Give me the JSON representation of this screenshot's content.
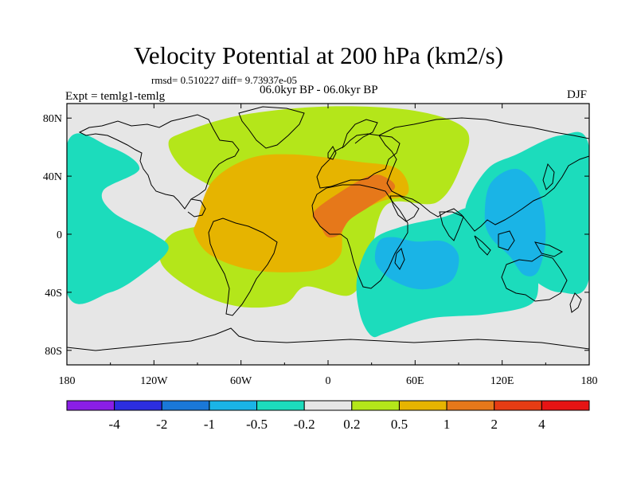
{
  "figure": {
    "title": "Velocity Potential at 200 hPa (km2/s)",
    "stats": "rmsd= 0.510227 diff= 9.73937e-05",
    "subtitle": "06.0kyr BP - 06.0kyr BP",
    "left_label": "Expt = temlg1-temlg",
    "right_label": "DJF"
  },
  "axes": {
    "lon_labels": [
      "180",
      "120W",
      "60W",
      "0",
      "60E",
      "120E",
      "180"
    ],
    "lon_values": [
      -180,
      -120,
      -60,
      0,
      60,
      120,
      180
    ],
    "lat_labels": [
      "80N",
      "40N",
      "0",
      "40S",
      "80S"
    ],
    "lat_values": [
      80,
      40,
      0,
      -40,
      -80
    ]
  },
  "colorbar": {
    "labels": [
      "-4",
      "-2",
      "-1",
      "-0.5",
      "-0.2",
      "0.2",
      "0.5",
      "1",
      "2",
      "4"
    ],
    "colors": [
      "#8a1ee6",
      "#2c2ee0",
      "#1a78d8",
      "#1ab4e6",
      "#1cdcbc",
      "#e6e6e6",
      "#b4e61a",
      "#e6b400",
      "#e6781a",
      "#e63c14",
      "#e61414"
    ]
  },
  "chart_data": {
    "type": "filled-contour-map",
    "variable": "Velocity Potential at 200 hPa",
    "units": "km2/s",
    "season": "DJF",
    "levels": [
      -4,
      -2,
      -1,
      -0.5,
      -0.2,
      0.2,
      0.5,
      1,
      2,
      4
    ],
    "xlim": [
      -180,
      180
    ],
    "ylim": [
      -90,
      90
    ],
    "features": [
      {
        "name": "positive anomaly (0.2 to 0.5) over Atlantic, Europe, Africa",
        "level": "0.2-0.5",
        "color": "#b4e61a",
        "outline": [
          [
            -100,
            70
          ],
          [
            -60,
            82
          ],
          [
            0,
            88
          ],
          [
            60,
            85
          ],
          [
            95,
            72
          ],
          [
            92,
            48
          ],
          [
            75,
            22
          ],
          [
            40,
            20
          ],
          [
            28,
            -20
          ],
          [
            15,
            -42
          ],
          [
            -15,
            -36
          ],
          [
            -30,
            -48
          ],
          [
            -60,
            -50
          ],
          [
            -90,
            -40
          ],
          [
            -115,
            -20
          ],
          [
            -108,
            0
          ],
          [
            -75,
            10
          ],
          [
            -75,
            28
          ],
          [
            -100,
            45
          ],
          [
            -110,
            62
          ]
        ]
      },
      {
        "name": "positive anomaly (0.5 to 1) over Atlantic, Sahara, South America",
        "level": "0.5-1",
        "color": "#e6b400",
        "outline": [
          [
            -90,
            10
          ],
          [
            -80,
            36
          ],
          [
            -55,
            52
          ],
          [
            -25,
            55
          ],
          [
            20,
            50
          ],
          [
            48,
            45
          ],
          [
            55,
            28
          ],
          [
            35,
            22
          ],
          [
            12,
            8
          ],
          [
            8,
            -15
          ],
          [
            -10,
            -25
          ],
          [
            -50,
            -25
          ],
          [
            -80,
            -15
          ],
          [
            -92,
            0
          ]
        ]
      },
      {
        "name": "maximum (1 to 2) over North Africa",
        "level": "1-2",
        "color": "#e6781a",
        "outline": [
          [
            -5,
            5
          ],
          [
            -10,
            15
          ],
          [
            10,
            30
          ],
          [
            28,
            40
          ],
          [
            38,
            40
          ],
          [
            46,
            32
          ],
          [
            30,
            20
          ],
          [
            15,
            10
          ],
          [
            8,
            0
          ],
          [
            0,
            -2
          ]
        ]
      },
      {
        "name": "negative anomaly (-0.5 to -0.2) over Indian Ocean",
        "level": "-0.5 to -0.2",
        "color": "#1cdcbc",
        "outline": [
          [
            20,
            -30
          ],
          [
            30,
            -5
          ],
          [
            50,
            5
          ],
          [
            80,
            12
          ],
          [
            100,
            18
          ],
          [
            115,
            0
          ],
          [
            125,
            -10
          ],
          [
            142,
            -5
          ],
          [
            145,
            -30
          ],
          [
            140,
            -48
          ],
          [
            110,
            -55
          ],
          [
            70,
            -58
          ],
          [
            40,
            -68
          ],
          [
            30,
            -70
          ],
          [
            22,
            -55
          ]
        ]
      },
      {
        "name": "negative anomaly (-0.5 to -0.2) over western Pacific",
        "level": "-0.5 to -0.2",
        "color": "#1cdcbc",
        "outline": [
          [
            95,
            20
          ],
          [
            110,
            45
          ],
          [
            130,
            55
          ],
          [
            160,
            68
          ],
          [
            180,
            60
          ],
          [
            180,
            -30
          ],
          [
            160,
            -40
          ],
          [
            140,
            -30
          ],
          [
            125,
            -12
          ],
          [
            110,
            -2
          ],
          [
            100,
            5
          ]
        ]
      },
      {
        "name": "negative anomaly (-0.5 to -0.2) over eastern Pacific",
        "level": "-0.5 to -0.2",
        "color": "#1cdcbc",
        "outline": [
          [
            -180,
            62
          ],
          [
            -150,
            60
          ],
          [
            -130,
            45
          ],
          [
            -155,
            30
          ],
          [
            -148,
            15
          ],
          [
            -120,
            0
          ],
          [
            -110,
            -10
          ],
          [
            -125,
            -25
          ],
          [
            -150,
            -40
          ],
          [
            -180,
            -40
          ]
        ]
      },
      {
        "name": "minimum (-1 to -0.5) over Indian Ocean",
        "level": "-1 to -0.5",
        "color": "#1ab4e6",
        "outline": [
          [
            35,
            -5
          ],
          [
            45,
            -2
          ],
          [
            60,
            -5
          ],
          [
            80,
            -5
          ],
          [
            90,
            -15
          ],
          [
            85,
            -32
          ],
          [
            65,
            -38
          ],
          [
            45,
            -32
          ],
          [
            33,
            -20
          ]
        ]
      },
      {
        "name": "(-1 to -0.5) over Maritime Continent",
        "level": "-1 to -0.5",
        "color": "#1ab4e6",
        "outline": [
          [
            112,
            35
          ],
          [
            130,
            45
          ],
          [
            145,
            30
          ],
          [
            150,
            0
          ],
          [
            145,
            -25
          ],
          [
            135,
            -28
          ],
          [
            125,
            -15
          ],
          [
            112,
            -2
          ],
          [
            108,
            12
          ]
        ]
      }
    ]
  }
}
